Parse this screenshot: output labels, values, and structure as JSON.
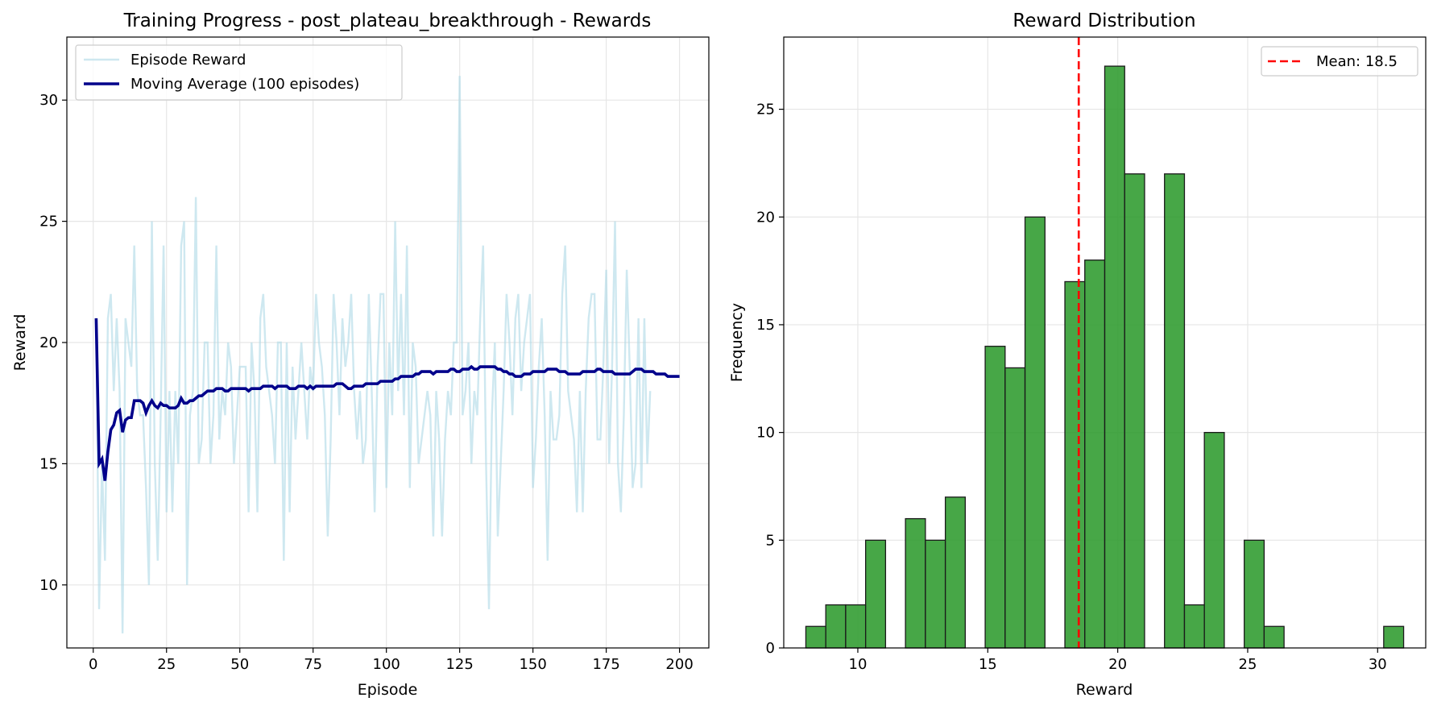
{
  "colors": {
    "episode": "#add8e6",
    "moving_average": "#00008b",
    "hist_bar": "#2e9b2e",
    "hist_edge": "#1a1a1a",
    "mean_line": "#ff0000",
    "grid": "#e6e6e6"
  },
  "chart_data": [
    {
      "type": "line",
      "title": "Training Progress - post_plateau_breakthrough - Rewards",
      "xlabel": "Episode",
      "ylabel": "Reward",
      "xlim": [
        -9,
        210
      ],
      "ylim": [
        7.4,
        32.6
      ],
      "xticks": [
        0,
        25,
        50,
        75,
        100,
        125,
        150,
        175,
        200
      ],
      "yticks": [
        10,
        15,
        20,
        25,
        30
      ],
      "grid": true,
      "legend_position": "top-left",
      "series": [
        {
          "name": "Episode Reward",
          "x_start": 1,
          "values": [
            21,
            9,
            15,
            11,
            21,
            22,
            18,
            21,
            18,
            8,
            21,
            20,
            19,
            24,
            18,
            17,
            17,
            14,
            10,
            25,
            15,
            11,
            17,
            24,
            13,
            18,
            13,
            18,
            15,
            24,
            25,
            10,
            17,
            18,
            26,
            15,
            16,
            20,
            20,
            15,
            17,
            24,
            16,
            18,
            17,
            20,
            19,
            15,
            17,
            19,
            19,
            19,
            13,
            20,
            18,
            13,
            21,
            22,
            19,
            18,
            17,
            15,
            20,
            20,
            11,
            20,
            13,
            19,
            16,
            18,
            20,
            18,
            16,
            19,
            18,
            22,
            20,
            19,
            17,
            12,
            16,
            22,
            20,
            17,
            21,
            19,
            20,
            22,
            18,
            16,
            18,
            15,
            16,
            22,
            18,
            13,
            19,
            22,
            22,
            14,
            20,
            17,
            25,
            18,
            22,
            17,
            24,
            14,
            20,
            19,
            15,
            16,
            17,
            18,
            17,
            12,
            18,
            16,
            12,
            16,
            18,
            17,
            20,
            20,
            31,
            17,
            18,
            20,
            15,
            18,
            17,
            21,
            24,
            15,
            9,
            17,
            20,
            12,
            15,
            18,
            22,
            20,
            17,
            21,
            22,
            18,
            20,
            21,
            22,
            14,
            16,
            19,
            21,
            17,
            11,
            18,
            16,
            16,
            17,
            22,
            24,
            18,
            17,
            16,
            13,
            18,
            13,
            18,
            21,
            22,
            22,
            16,
            16,
            19,
            23,
            15,
            19,
            25,
            15,
            13,
            17,
            23,
            19,
            14,
            15,
            21,
            14,
            21,
            15,
            18
          ]
        },
        {
          "name": "Moving Average (100 episodes)",
          "x_start": 1,
          "values": [
            21.0,
            15.0,
            15.2,
            14.3,
            15.5,
            16.4,
            16.6,
            17.1,
            17.2,
            16.3,
            16.8,
            16.9,
            16.9,
            17.6,
            17.6,
            17.6,
            17.5,
            17.1,
            17.4,
            17.6,
            17.4,
            17.3,
            17.5,
            17.4,
            17.4,
            17.3,
            17.3,
            17.3,
            17.4,
            17.7,
            17.5,
            17.5,
            17.6,
            17.6,
            17.7,
            17.8,
            17.8,
            17.9,
            18.0,
            18.0,
            18.0,
            18.1,
            18.1,
            18.1,
            18.0,
            18.0,
            18.1,
            18.1,
            18.1,
            18.1,
            18.1,
            18.1,
            18.0,
            18.1,
            18.1,
            18.1,
            18.1,
            18.2,
            18.2,
            18.2,
            18.2,
            18.1,
            18.2,
            18.2,
            18.2,
            18.2,
            18.1,
            18.1,
            18.1,
            18.2,
            18.2,
            18.2,
            18.1,
            18.2,
            18.1,
            18.2,
            18.2,
            18.2,
            18.2,
            18.2,
            18.2,
            18.2,
            18.3,
            18.3,
            18.3,
            18.2,
            18.1,
            18.1,
            18.2,
            18.2,
            18.2,
            18.2,
            18.3,
            18.3,
            18.3,
            18.3,
            18.3,
            18.4,
            18.4,
            18.4,
            18.4,
            18.4,
            18.5,
            18.5,
            18.6,
            18.6,
            18.6,
            18.6,
            18.6,
            18.7,
            18.7,
            18.8,
            18.8,
            18.8,
            18.8,
            18.7,
            18.8,
            18.8,
            18.8,
            18.8,
            18.8,
            18.9,
            18.9,
            18.8,
            18.8,
            18.9,
            18.9,
            18.9,
            19.0,
            18.9,
            18.9,
            19.0,
            19.0,
            19.0,
            19.0,
            19.0,
            19.0,
            18.9,
            18.9,
            18.8,
            18.8,
            18.7,
            18.7,
            18.6,
            18.6,
            18.6,
            18.7,
            18.7,
            18.7,
            18.8,
            18.8,
            18.8,
            18.8,
            18.8,
            18.9,
            18.9,
            18.9,
            18.9,
            18.8,
            18.8,
            18.8,
            18.7,
            18.7,
            18.7,
            18.7,
            18.7,
            18.8,
            18.8,
            18.8,
            18.8,
            18.8,
            18.9,
            18.9,
            18.8,
            18.8,
            18.8,
            18.8,
            18.7,
            18.7,
            18.7,
            18.7,
            18.7,
            18.7,
            18.8,
            18.9,
            18.9,
            18.9,
            18.8,
            18.8,
            18.8,
            18.8,
            18.7,
            18.7,
            18.7,
            18.7,
            18.6,
            18.6,
            18.6,
            18.6,
            18.6
          ]
        }
      ]
    },
    {
      "type": "bar",
      "title": "Reward Distribution",
      "xlabel": "Reward",
      "ylabel": "Frequency",
      "xlim": [
        7.15,
        31.85
      ],
      "ylim": [
        0,
        28.35
      ],
      "xticks": [
        10,
        15,
        20,
        25,
        30
      ],
      "yticks": [
        0,
        5,
        10,
        15,
        20,
        25
      ],
      "grid": true,
      "legend_position": "top-right",
      "bin_edges": [
        8.0,
        8.767,
        9.533,
        10.3,
        11.067,
        11.833,
        12.6,
        13.367,
        14.133,
        14.9,
        15.667,
        16.433,
        17.2,
        17.967,
        18.733,
        19.5,
        20.267,
        21.033,
        21.8,
        22.567,
        23.333,
        24.1,
        24.867,
        25.633,
        26.4,
        27.167,
        27.933,
        28.7,
        29.467,
        30.233,
        31.0
      ],
      "values": [
        1,
        2,
        2,
        5,
        0,
        6,
        5,
        7,
        0,
        14,
        13,
        20,
        0,
        17,
        18,
        27,
        22,
        0,
        22,
        2,
        10,
        0,
        5,
        1,
        0,
        0,
        0,
        0,
        0,
        1
      ],
      "mean": 18.5,
      "mean_label": "Mean: 18.5"
    }
  ]
}
